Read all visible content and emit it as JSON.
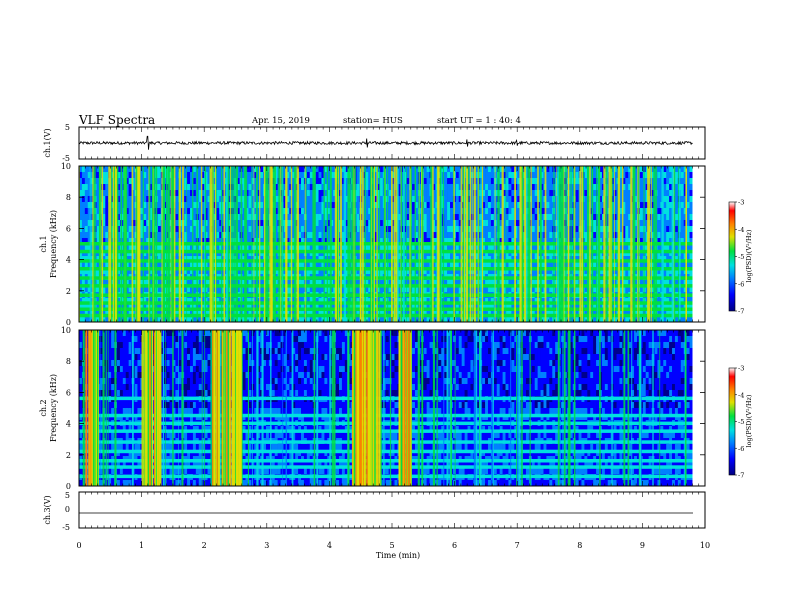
{
  "header": {
    "title": "VLF Spectra",
    "date": "Apr. 15, 2019",
    "station": "station= HUS",
    "start": "start  UT =   1 : 40: 4"
  },
  "colors": {
    "colormap": [
      "#00008c",
      "#0000ff",
      "#0080ff",
      "#00e0e0",
      "#00e040",
      "#e0e000",
      "#ff8000",
      "#ff0000",
      "#ffffff"
    ],
    "background_dark": "#000040",
    "trace": "#000000"
  },
  "chart_data": [
    {
      "type": "line",
      "panel": "ch1 waveform",
      "ylabel": "ch.1(V)",
      "ylim": [
        -5,
        5
      ],
      "yticks": [
        "5",
        "-5"
      ],
      "xlim": [
        0,
        10
      ],
      "description_values": "waveform hovering near 0 V with small noise, spikes near 1.1, 4.6, 6.2 and 7.0 min",
      "series": [
        {
          "x": [
            0,
            1.1,
            4.6,
            6.2,
            7.0,
            9.8
          ],
          "y": [
            0,
            1.5,
            -1.0,
            0.8,
            0.6,
            0
          ]
        }
      ]
    },
    {
      "type": "heatmap",
      "panel": "ch1 spectrogram",
      "ylabel": "ch.1\nFrequency  (kHz)",
      "ylabel_line1": "ch.1",
      "ylabel_line2": "Frequency  (kHz)",
      "ylim": [
        0,
        10
      ],
      "yticks": [
        "0",
        "2",
        "4",
        "6",
        "8",
        "10"
      ],
      "xlim": [
        0,
        10
      ],
      "bands_khz": [
        0.4,
        0.8,
        1.2,
        1.7,
        2.3,
        2.8,
        3.4,
        3.9,
        4.5,
        5.0
      ],
      "colorbar": {
        "label": "log(PSD)(V²/Hz)",
        "range": [
          -7,
          -3
        ],
        "ticks": [
          "-3",
          "-4",
          "-5",
          "-6",
          "-7"
        ]
      }
    },
    {
      "type": "heatmap",
      "panel": "ch2 spectrogram",
      "ylabel": "ch.2\nFrequency  (kHz)",
      "ylabel_line1": "ch.2",
      "ylabel_line2": "Frequency  (kHz)",
      "ylim": [
        0,
        10
      ],
      "yticks": [
        "0",
        "2",
        "4",
        "6",
        "8",
        "10"
      ],
      "xlim": [
        0,
        10
      ],
      "bands_khz": [
        0.6,
        1.2,
        1.6,
        2.2,
        2.8,
        3.5,
        4.0,
        4.5,
        5.6
      ],
      "bursts_min": [
        [
          0.1,
          0.3
        ],
        [
          1.0,
          1.3
        ],
        [
          2.1,
          2.6
        ],
        [
          4.35,
          4.8
        ],
        [
          5.1,
          5.3
        ]
      ],
      "colorbar": {
        "label": "log(PSD)(V²/Hz)",
        "range": [
          -7,
          -3
        ],
        "ticks": [
          "-3",
          "-4",
          "-5",
          "-6",
          "-7"
        ]
      }
    },
    {
      "type": "line",
      "panel": "ch3 waveform",
      "ylabel": "ch.3(V)",
      "ylim": [
        -5,
        5
      ],
      "yticks": [
        "5",
        "0",
        "-5"
      ],
      "xlim": [
        0,
        10
      ],
      "series": [
        {
          "x": [
            0,
            9.8
          ],
          "y": [
            -1.2,
            -1.2
          ]
        }
      ]
    }
  ],
  "xaxis": {
    "label": "Time  (min)",
    "ticks": [
      "0",
      "1",
      "2",
      "3",
      "4",
      "5",
      "6",
      "7",
      "8",
      "9",
      "10"
    ]
  }
}
